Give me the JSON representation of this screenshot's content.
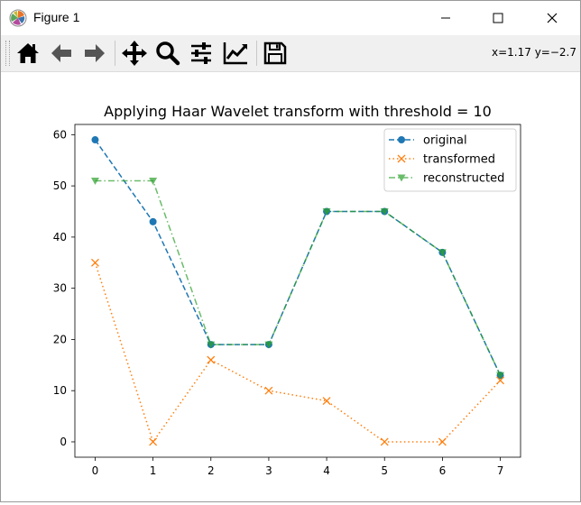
{
  "window": {
    "title": "Figure 1",
    "icon": "matplotlib-logo-icon",
    "buttons": [
      "minimize-icon",
      "maximize-icon",
      "close-icon"
    ]
  },
  "toolbar": {
    "tools": [
      {
        "name": "home-icon"
      },
      {
        "name": "back-arrow-icon"
      },
      {
        "name": "forward-arrow-icon"
      },
      {
        "name": "pan-move-icon"
      },
      {
        "name": "zoom-magnifier-icon"
      },
      {
        "name": "configure-subplots-icon"
      },
      {
        "name": "edit-axis-icon"
      },
      {
        "name": "save-floppy-icon"
      }
    ],
    "coords": "x=1.17 y=−2.7"
  },
  "chart_data": {
    "type": "line",
    "title": "Applying Haar Wavelet transform with threshold = 10",
    "x": [
      0,
      1,
      2,
      3,
      4,
      5,
      6,
      7
    ],
    "xlim": [
      -0.35,
      7.35
    ],
    "ylim": [
      -3,
      62
    ],
    "xticks": [
      0,
      1,
      2,
      3,
      4,
      5,
      6,
      7
    ],
    "yticks": [
      0,
      10,
      20,
      30,
      40,
      50,
      60
    ],
    "grid": false,
    "legend_position": "upper-right",
    "series": [
      {
        "name": "original",
        "values": [
          59,
          43,
          19,
          19,
          45,
          45,
          37,
          13
        ],
        "color": "#1f77b4",
        "linestyle": "dashed",
        "marker": "circle"
      },
      {
        "name": "transformed",
        "values": [
          35,
          0,
          16,
          10,
          8,
          0,
          0,
          12
        ],
        "color": "#ff7f0e",
        "linestyle": "dotted",
        "marker": "x"
      },
      {
        "name": "reconstructed",
        "values": [
          51,
          51,
          19,
          19,
          45,
          45,
          37,
          13
        ],
        "color": "#2ca02c",
        "linestyle": "dashdot",
        "marker": "triangle-down"
      }
    ]
  }
}
